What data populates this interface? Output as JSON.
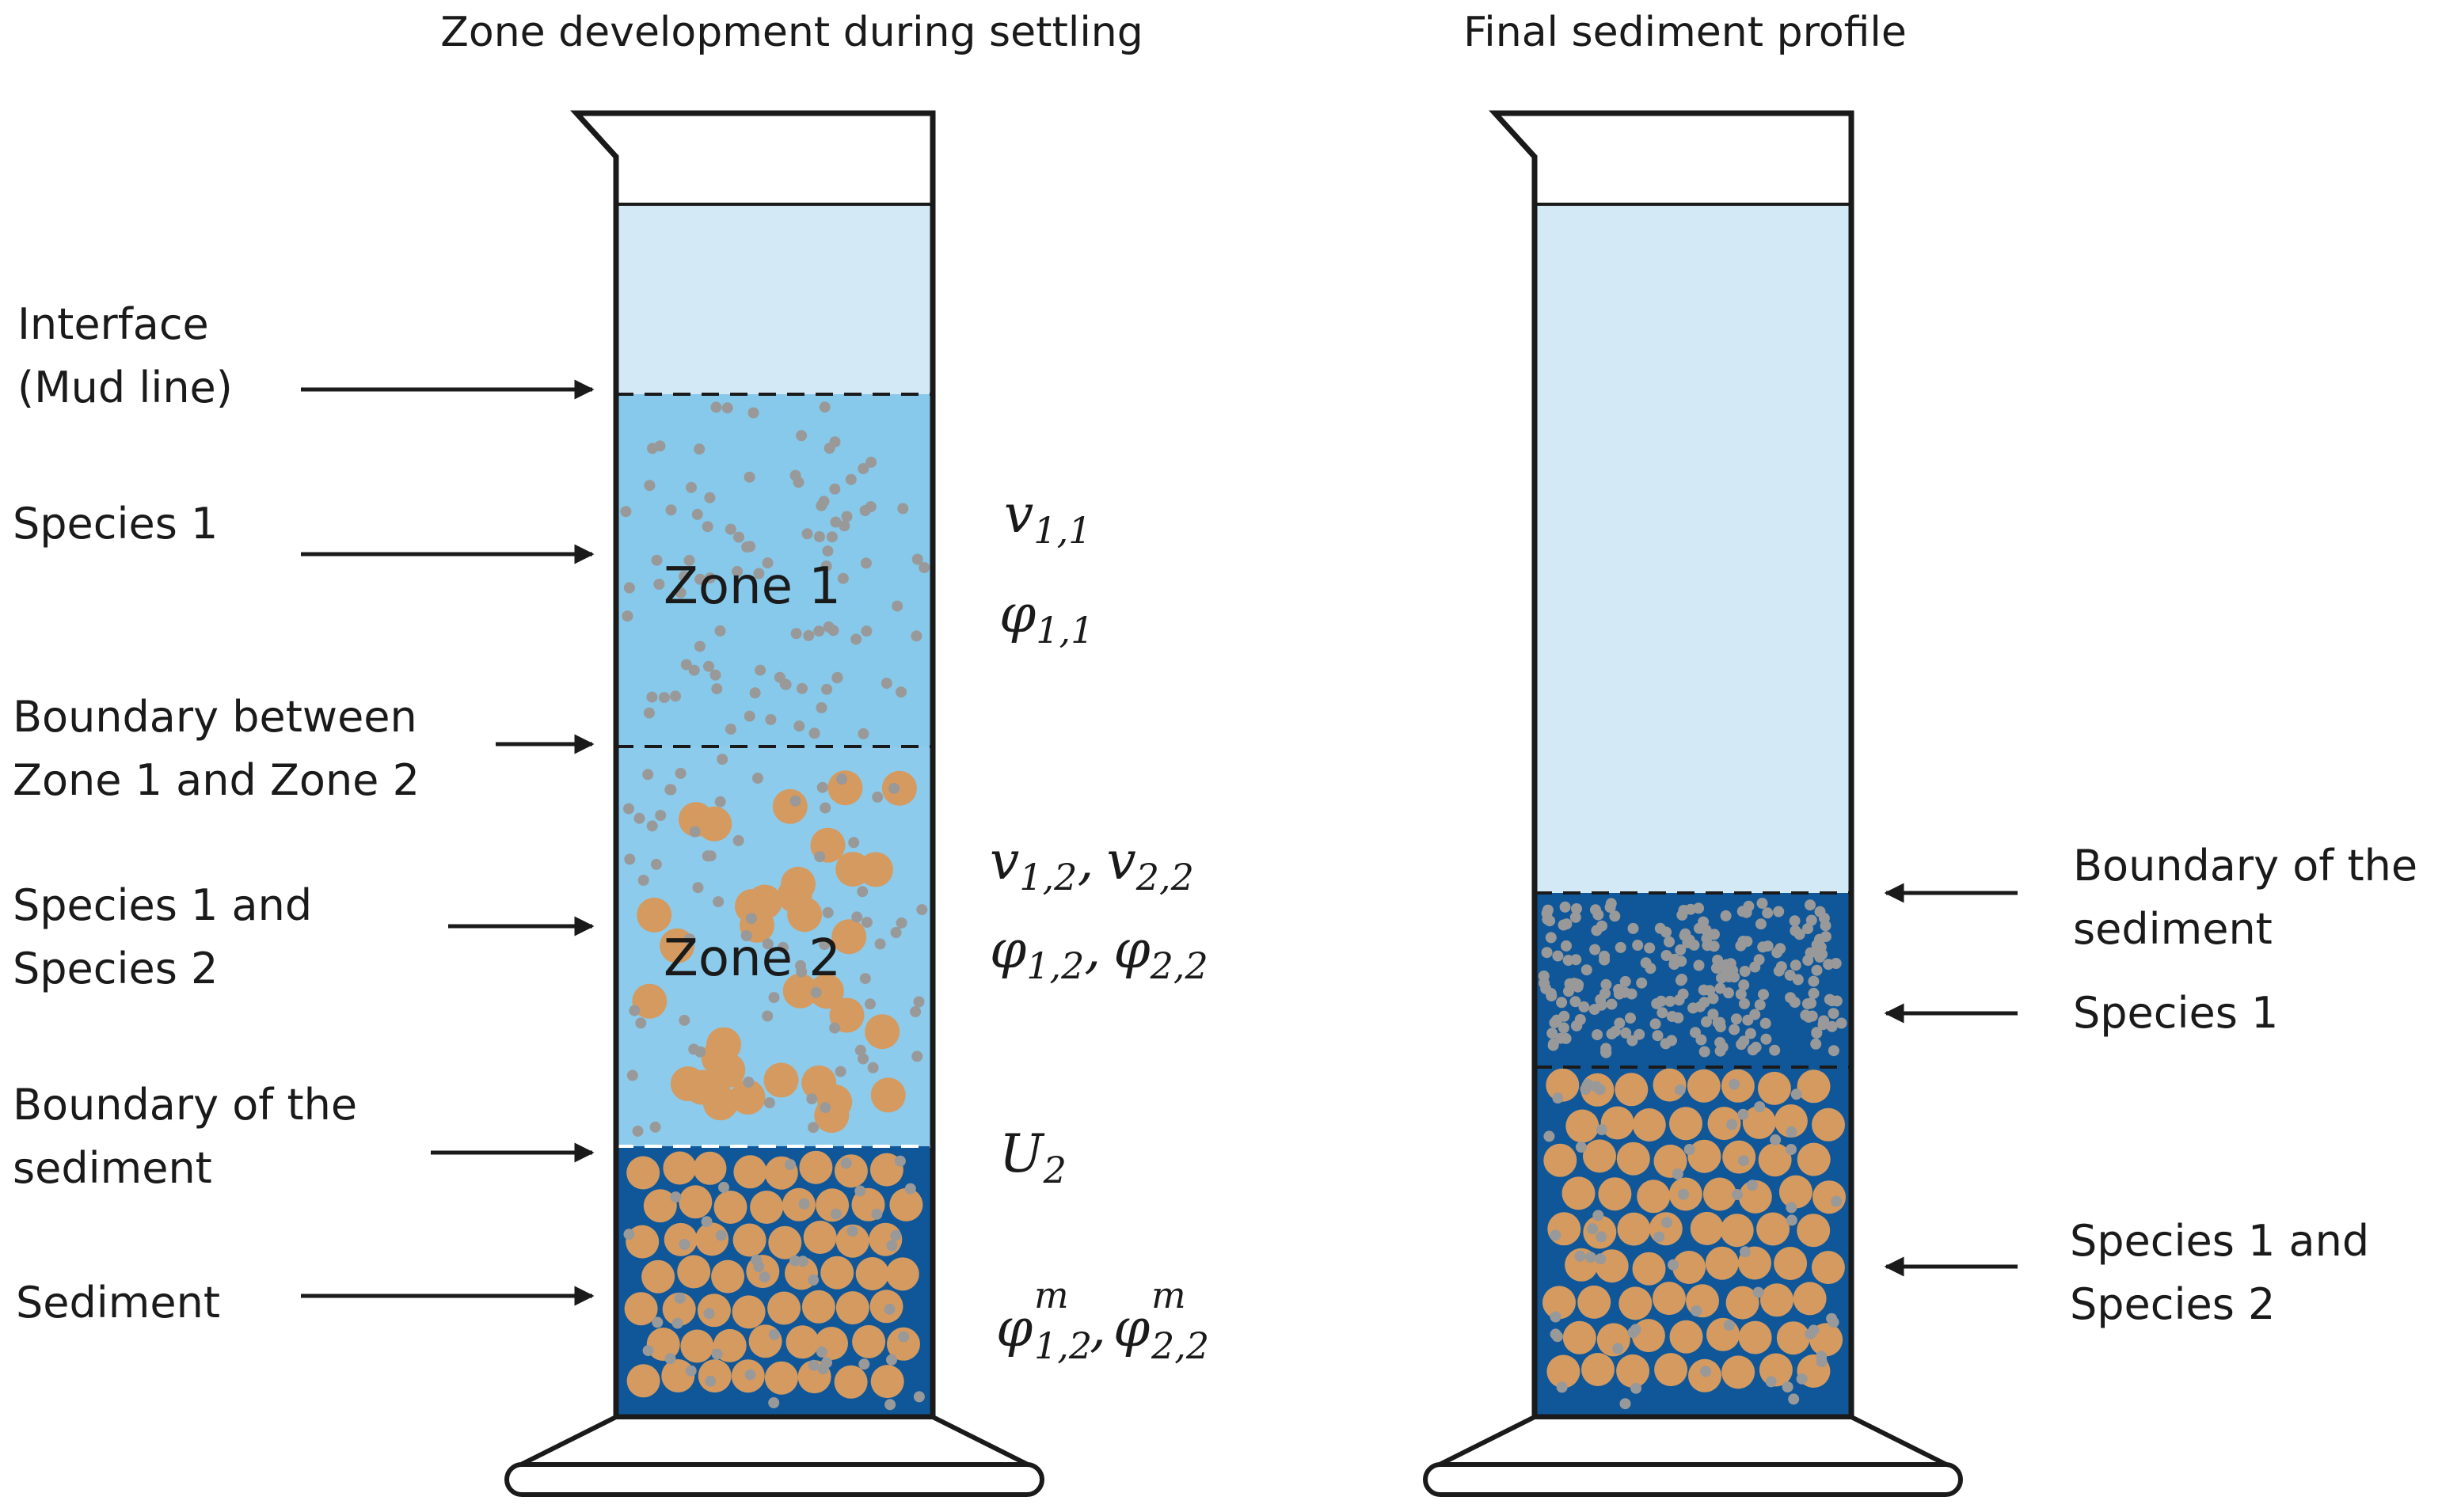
{
  "titles": {
    "left": "Zone development during settling",
    "right": "Final sediment profile"
  },
  "left_labels": {
    "interface_line1": "Interface",
    "interface_line2": "(Mud line)",
    "species1": "Species 1",
    "boundary_line1": "Boundary between",
    "boundary_line2": "Zone 1 and Zone 2",
    "species12_line1": "Species 1 and",
    "species12_line2": "Species 2",
    "sediment_boundary_line1": "Boundary of the",
    "sediment_boundary_line2": "sediment",
    "sediment": "Sediment"
  },
  "zones": {
    "zone1": "Zone 1",
    "zone2": "Zone 2"
  },
  "symbols": {
    "v11": {
      "base": "v",
      "sub": "1,1"
    },
    "phi11": {
      "base": "φ",
      "sub": "1,1"
    },
    "v12": {
      "base": "v",
      "sub": "1,2"
    },
    "v22": {
      "base": "v",
      "sub": "2,2"
    },
    "phi12": {
      "base": "φ",
      "sub": "1,2"
    },
    "phi22": {
      "base": "φ",
      "sub": "2,2"
    },
    "U2": {
      "base": "U",
      "sub": "2"
    },
    "phim12": {
      "base": "φ",
      "sub": "1,2",
      "sup": "m"
    },
    "phim22": {
      "base": "φ",
      "sub": "2,2",
      "sup": "m"
    },
    "separator": ","
  },
  "right_labels": {
    "boundary_line1": "Boundary of the",
    "boundary_line2": "sediment",
    "species1": "Species 1",
    "species12_line1": "Species 1 and",
    "species12_line2": "Species 2"
  },
  "colors": {
    "supernatant": "#d3e9f5",
    "zone1": "#86c9ea",
    "zone2": "#8ccbec",
    "sediment": "#0f5799",
    "small_particle": "#999999",
    "large_particle": "#d59a5f",
    "outline": "#1a1a1a"
  }
}
